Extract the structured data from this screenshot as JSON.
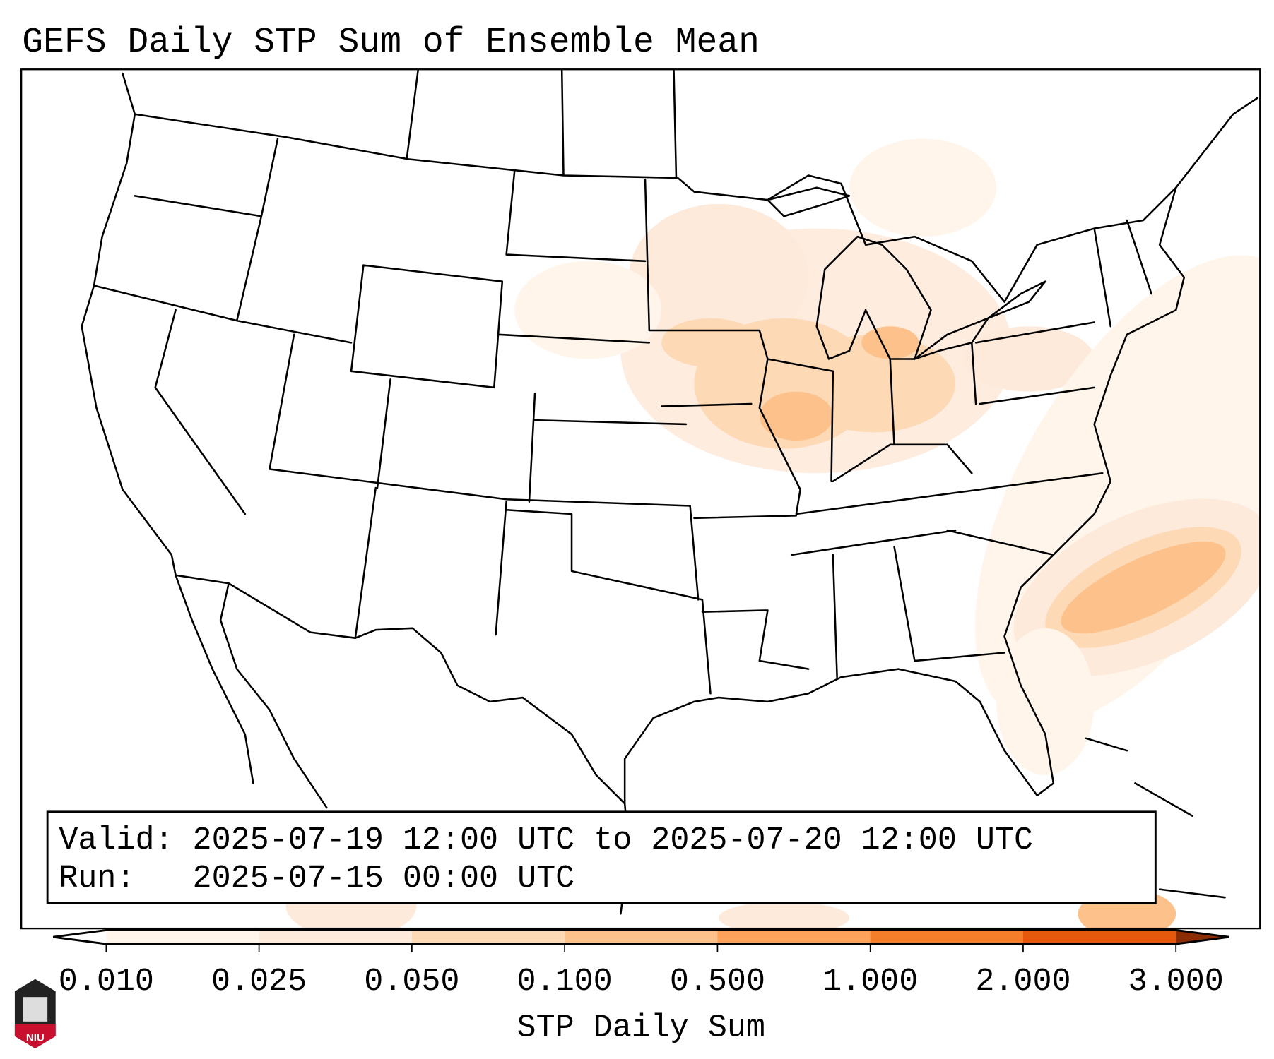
{
  "title": "GEFS Daily STP Sum of Ensemble Mean",
  "legend_box": {
    "valid_line": "Valid: 2025-07-19 12:00 UTC to 2025-07-20 12:00 UTC",
    "run_line": "Run:   2025-07-15 00:00 UTC"
  },
  "colorbar": {
    "label": "STP Daily Sum",
    "ticks": [
      "0.010",
      "0.025",
      "0.050",
      "0.100",
      "0.500",
      "1.000",
      "2.000",
      "3.000"
    ],
    "colors": [
      "#fff5eb",
      "#feeadb",
      "#fdd9b5",
      "#fdc28c",
      "#fda25a",
      "#f57e2a",
      "#e4590c",
      "#c44103"
    ],
    "under_color": "#ffffff",
    "over_color": "#8c2d04"
  },
  "logo": {
    "text": "NIU"
  }
}
